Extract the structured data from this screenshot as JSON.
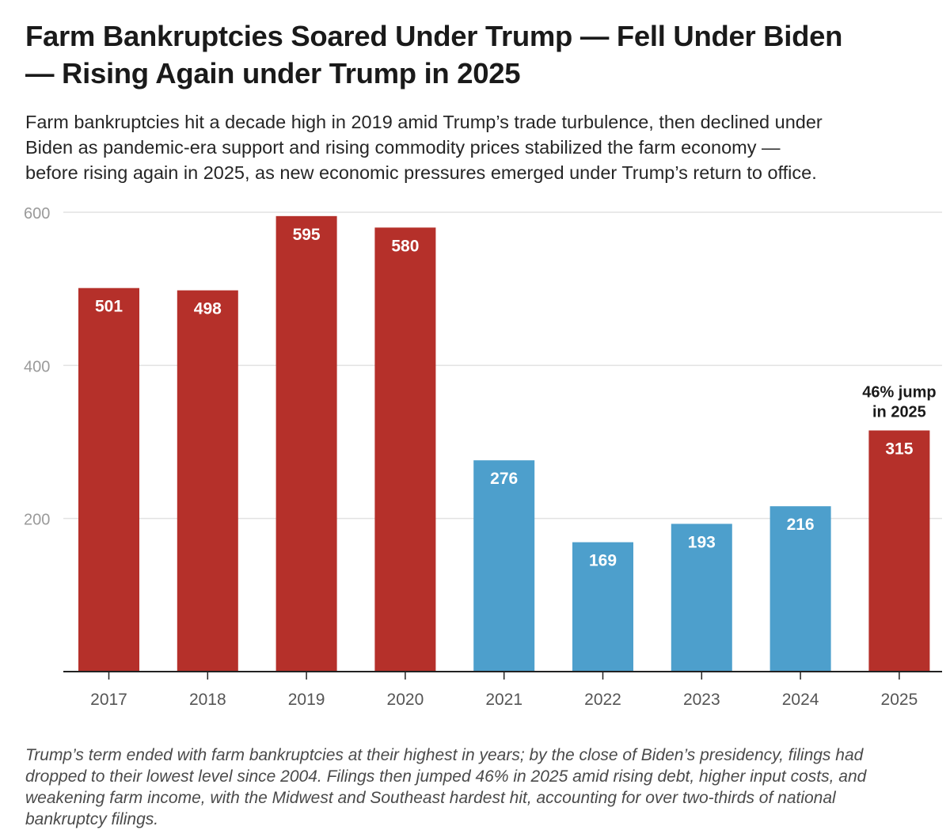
{
  "header": {
    "title_line1": "Farm Bankruptcies Soared Under Trump — Fell Under Biden",
    "title_line2": "— Rising Again under Trump in 2025",
    "subtitle_line1": "Farm bankruptcies hit a decade high in 2019 amid Trump’s trade turbulence, then declined under",
    "subtitle_line2": "Biden as pandemic-era support and rising commodity prices stabilized the farm economy —",
    "subtitle_line3": "before rising again in 2025, as new economic pressures emerged under Trump’s return to office."
  },
  "chart_data": {
    "type": "bar",
    "title": "Farm Bankruptcies Soared Under Trump — Fell Under Biden — Rising Again under Trump in 2025",
    "categories": [
      "2017",
      "2018",
      "2019",
      "2020",
      "2021",
      "2022",
      "2023",
      "2024",
      "2025"
    ],
    "values": [
      501,
      498,
      595,
      580,
      276,
      169,
      193,
      216,
      315
    ],
    "bar_colors": [
      "#b5302a",
      "#b5302a",
      "#b5302a",
      "#b5302a",
      "#4d9fcc",
      "#4d9fcc",
      "#4d9fcc",
      "#4d9fcc",
      "#b5302a"
    ],
    "ylim": [
      0,
      600
    ],
    "yticks": [
      200,
      400,
      600
    ],
    "grid": true,
    "xlabel": "",
    "ylabel": "",
    "annotations": [
      {
        "category": "2025",
        "lines": [
          "46% jump",
          "in 2025"
        ]
      }
    ]
  },
  "footnote": {
    "line1": "Trump’s term ended with farm bankruptcies at their highest in years; by the close of Biden’s presidency, filings had",
    "line2": "dropped to their lowest level since 2004. Filings then jumped 46% in 2025 amid rising debt, higher input costs, and",
    "line3": "weakening farm income, with the Midwest and Southeast hardest hit, accounting for over two-thirds of national",
    "line4": "bankruptcy filings."
  },
  "colors": {
    "trump_red": "#b5302a",
    "biden_blue": "#4d9fcc",
    "gridline": "#e2e2e2",
    "axis": "#222222"
  }
}
